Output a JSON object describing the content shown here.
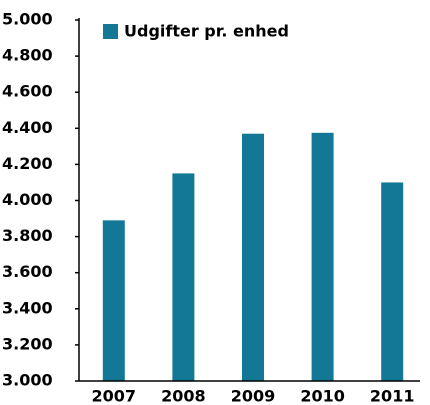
{
  "chart_data": {
    "type": "bar",
    "categories": [
      "2007",
      "2008",
      "2009",
      "2010",
      "2011"
    ],
    "series": [
      {
        "name": "Udgifter pr. enhed",
        "color": "#137896",
        "values": [
          3890,
          4150,
          4370,
          4375,
          4100
        ]
      }
    ],
    "ylim": [
      3000,
      5000
    ],
    "yticks": [
      {
        "value": 3000,
        "label": "3.000"
      },
      {
        "value": 3200,
        "label": "3.200"
      },
      {
        "value": 3400,
        "label": "3.400"
      },
      {
        "value": 3600,
        "label": "3.600"
      },
      {
        "value": 3800,
        "label": "3.800"
      },
      {
        "value": 4000,
        "label": "4.000"
      },
      {
        "value": 4200,
        "label": "4.200"
      },
      {
        "value": 4400,
        "label": "4.400"
      },
      {
        "value": 4600,
        "label": "4.600"
      },
      {
        "value": 4800,
        "label": "4.800"
      },
      {
        "value": 5000,
        "label": "5.000"
      }
    ],
    "legend": "top-left"
  }
}
